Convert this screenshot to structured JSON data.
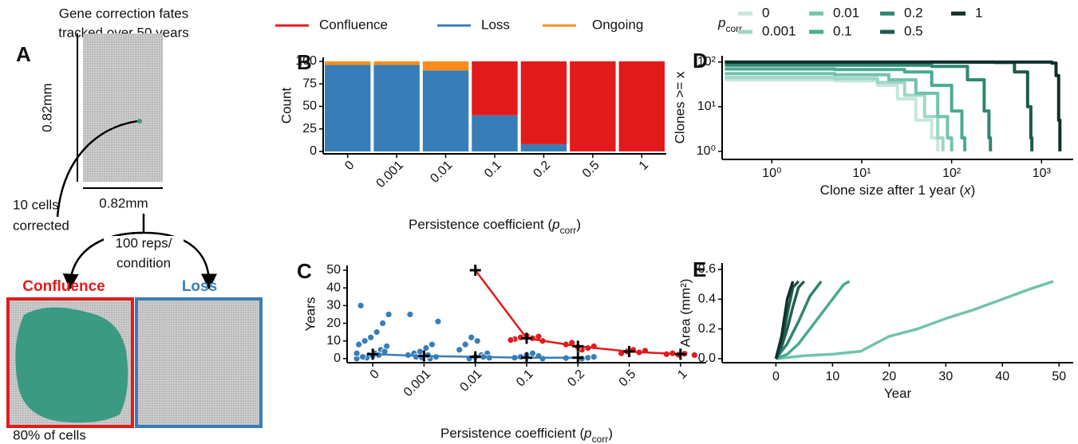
{
  "diagram": {
    "panel_label": "A",
    "title_lines": [
      "Gene correction fates",
      "tracked over 50 years"
    ],
    "height_label": "0.82mm",
    "width_label": "0.82mm",
    "arrow_label_lines": [
      "10 cells",
      "corrected"
    ],
    "reps_label_lines": [
      "100 reps/",
      "condition"
    ],
    "outcomes": [
      "Confluence",
      "Loss"
    ],
    "confluence_note": "80% of cells"
  },
  "chart_data": [
    {
      "type": "stacked_bar",
      "panel_label": "B",
      "y_label": "Count",
      "x_label": [
        "Persistence coefficient (",
        "p",
        "corr",
        ")"
      ],
      "categories": [
        "0",
        "0.001",
        "0.01",
        "0.1",
        "0.2",
        "0.5",
        "1"
      ],
      "series": [
        {
          "name": "Confluence",
          "color": "#e31a1c",
          "values": [
            0,
            0,
            0,
            60,
            92,
            100,
            100
          ]
        },
        {
          "name": "Loss",
          "color": "#377eb8",
          "values": [
            96,
            96,
            90,
            40,
            8,
            0,
            0
          ]
        },
        {
          "name": "Ongoing",
          "color": "#ff8c1a",
          "values": [
            4,
            4,
            10,
            0,
            0,
            0,
            0
          ]
        }
      ],
      "ylim": [
        -2.7,
        104.4
      ],
      "yticks": [
        0,
        25,
        50,
        75,
        100
      ]
    },
    {
      "type": "strip",
      "panel_label": "C",
      "y_label": "Years",
      "x_label": [
        "Persistence coefficient (",
        "p",
        "corr",
        ")"
      ],
      "categories": [
        "0",
        "0.001",
        "0.01",
        "0.1",
        "0.2",
        "0.5",
        "1"
      ],
      "series": [
        {
          "color": "#377eb8",
          "values": [
            [
              0,
              1,
              2,
              3,
              5,
              7,
              8,
              10,
              12,
              15,
              20,
              25,
              30,
              0.5,
              1.5,
              2,
              4,
              3,
              1
            ],
            [
              0,
              1,
              2,
              3,
              4,
              6,
              8,
              21,
              25,
              1,
              0.5,
              2
            ],
            [
              0,
              1,
              2,
              3,
              5,
              8,
              12,
              10,
              1,
              0.5
            ],
            [
              0,
              0.5,
              1,
              2,
              3,
              1.5
            ],
            [
              0,
              0.5,
              1,
              0.3
            ],
            [],
            []
          ],
          "medians": [
            2.5,
            1.5,
            1,
            0.5,
            0.5,
            null,
            null
          ]
        },
        {
          "color": "#e31a1c",
          "values": [
            [],
            [],
            [],
            [
              10,
              11,
              12,
              13,
              11.5,
              12.5,
              10.5
            ],
            [
              5,
              6,
              7,
              8,
              9,
              6.5
            ],
            [
              3,
              4,
              5,
              3.5,
              4.5
            ],
            [
              2,
              2.5,
              3,
              2.2,
              2.8
            ]
          ],
          "medians": [
            null,
            null,
            50,
            11.5,
            7,
            4,
            2.5
          ]
        }
      ],
      "ylim": [
        -2.3,
        52.7
      ],
      "yticks": [
        0,
        10,
        20,
        30,
        40,
        50
      ]
    },
    {
      "type": "line",
      "panel_label": "D",
      "log_x": true,
      "log_y": true,
      "y_label": "Clones >= x",
      "x_label": [
        "Clone size after 1 year (",
        "x",
        ")"
      ],
      "legend_title": [
        "p",
        "corr"
      ],
      "series": [
        {
          "name": "0",
          "color": "#c6e7de",
          "x": [
            0.3,
            5,
            15,
            25,
            40,
            60,
            70
          ],
          "values": [
            40,
            38,
            30,
            15,
            5,
            2,
            1
          ]
        },
        {
          "name": "0.001",
          "color": "#9fd6c8",
          "x": [
            0.3,
            5,
            15,
            30,
            50,
            70,
            80
          ],
          "values": [
            45,
            43,
            35,
            18,
            6,
            2,
            1
          ]
        },
        {
          "name": "0.01",
          "color": "#71c3ae",
          "x": [
            0.3,
            5,
            20,
            40,
            70,
            90,
            100
          ],
          "values": [
            55,
            52,
            40,
            20,
            6,
            2,
            1
          ]
        },
        {
          "name": "0.1",
          "color": "#48ab93",
          "x": [
            0.3,
            5,
            30,
            60,
            100,
            130,
            140
          ],
          "values": [
            70,
            68,
            60,
            30,
            8,
            2,
            1
          ]
        },
        {
          "name": "0.2",
          "color": "#2e8672",
          "x": [
            0.3,
            10,
            60,
            150,
            230,
            260,
            270
          ],
          "values": [
            85,
            85,
            80,
            40,
            8,
            2,
            1
          ]
        },
        {
          "name": "0.5",
          "color": "#1d5a4c",
          "x": [
            0.3,
            100,
            300,
            500,
            700,
            760,
            780
          ],
          "values": [
            100,
            100,
            98,
            60,
            10,
            2,
            1
          ]
        },
        {
          "name": "1",
          "color": "#0f302a",
          "x": [
            0.3,
            1000,
            1300,
            1450,
            1550,
            1600
          ],
          "values": [
            100,
            100,
            95,
            50,
            5,
            1
          ]
        }
      ],
      "xlim": [
        0.28,
        2250
      ],
      "ylim": [
        0.66,
        138
      ],
      "xticks": [
        {
          "value": 1,
          "label": "10⁰"
        },
        {
          "value": 10,
          "label": "10¹"
        },
        {
          "value": 100,
          "label": "10²"
        },
        {
          "value": 1000,
          "label": "10³"
        }
      ],
      "yticks": [
        {
          "value": 1,
          "label": "10⁰"
        },
        {
          "value": 10,
          "label": "10¹"
        },
        {
          "value": 100,
          "label": "10²"
        }
      ]
    },
    {
      "type": "line",
      "panel_label": "E",
      "y_label": "Area (mm²)",
      "x_label": [
        "Year"
      ],
      "series": [
        {
          "color": "#71c3ae",
          "x": [
            0,
            5,
            10,
            15,
            20,
            25,
            30,
            35,
            40,
            45,
            49
          ],
          "values": [
            0,
            0.02,
            0.03,
            0.05,
            0.15,
            0.2,
            0.27,
            0.33,
            0.4,
            0.47,
            0.52
          ]
        },
        {
          "color": "#48ab93",
          "x": [
            0,
            2,
            4,
            6,
            8,
            10,
            12,
            13
          ],
          "values": [
            0,
            0.03,
            0.1,
            0.2,
            0.3,
            0.4,
            0.5,
            0.52
          ]
        },
        {
          "color": "#2e8672",
          "x": [
            0,
            2,
            4,
            6,
            8
          ],
          "values": [
            0,
            0.1,
            0.25,
            0.42,
            0.52
          ]
        },
        {
          "color": "#245f52",
          "x": [
            0,
            1,
            2,
            3,
            4,
            5
          ],
          "values": [
            0,
            0.08,
            0.2,
            0.35,
            0.48,
            0.52
          ]
        },
        {
          "color": "#1d5a4c",
          "x": [
            0,
            1,
            2,
            3,
            4
          ],
          "values": [
            0,
            0.1,
            0.3,
            0.48,
            0.52
          ]
        },
        {
          "color": "#0f302a",
          "x": [
            0,
            1,
            2,
            3
          ],
          "values": [
            0,
            0.15,
            0.4,
            0.52
          ]
        }
      ],
      "xlim": [
        -9.5,
        52.5
      ],
      "ylim": [
        -0.027,
        0.643
      ],
      "xticks": [
        0,
        10,
        20,
        30,
        40,
        50
      ],
      "yticks": [
        {
          "value": 0,
          "label": "0.0"
        },
        0.2,
        0.4,
        0.6
      ]
    }
  ]
}
